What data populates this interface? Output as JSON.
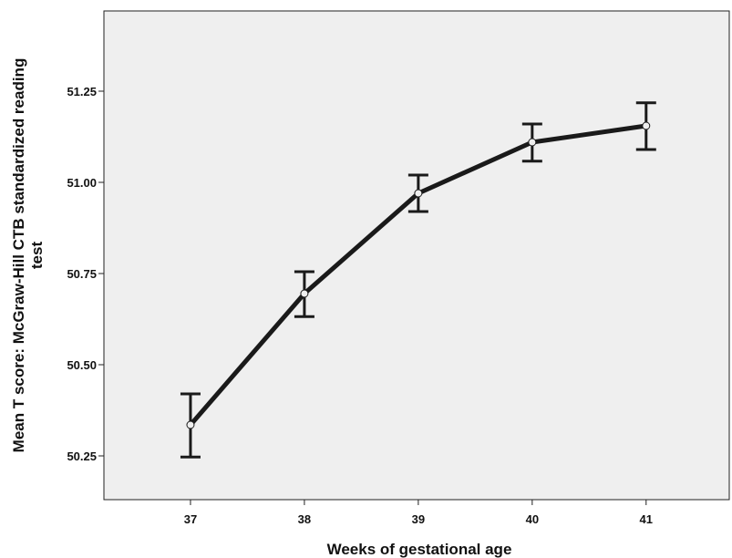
{
  "chart_data": {
    "type": "line",
    "xlabel": "Weeks of gestational age",
    "ylabel_line1": "Mean T score: McGraw-Hill CTB standardized reading",
    "ylabel_line2": "test",
    "x": [
      37,
      38,
      39,
      40,
      41
    ],
    "x_tick_labels": [
      "37",
      "38",
      "39",
      "40",
      "41"
    ],
    "y_ticks": [
      50.25,
      50.5,
      50.75,
      51.0,
      51.25
    ],
    "y_tick_labels": [
      "50.25",
      "50.50",
      "50.75",
      "51.00",
      "51.25"
    ],
    "ylim": [
      50.13,
      51.47
    ],
    "xlim": [
      36.24,
      41.73
    ],
    "series": [
      {
        "values": [
          50.335,
          50.695,
          50.97,
          51.11,
          51.155
        ],
        "error_low": [
          50.247,
          50.632,
          50.92,
          51.058,
          51.09
        ],
        "error_high": [
          50.42,
          50.755,
          51.02,
          51.16,
          51.218
        ]
      }
    ],
    "colors": {
      "plot_background": "#efefef",
      "line": "#1a1a1a"
    },
    "grid": false,
    "error_bars": true
  }
}
